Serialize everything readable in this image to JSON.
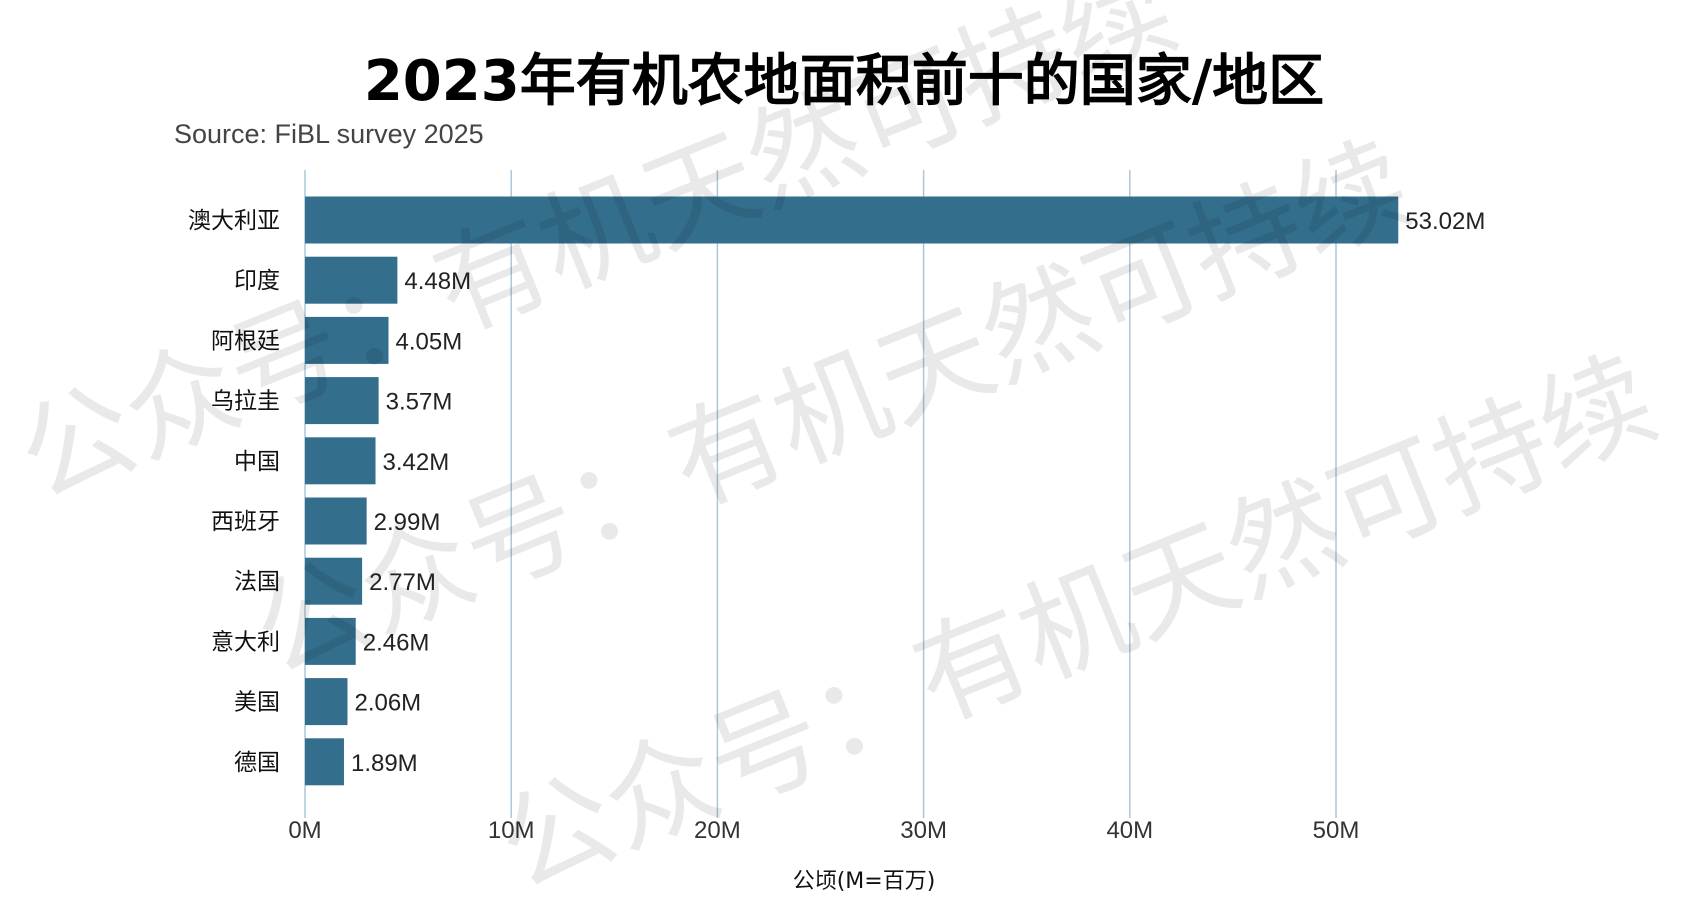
{
  "chart_data": {
    "type": "bar",
    "orientation": "horizontal",
    "title": "2023年有机农地面积前十的国家/地区",
    "subtitle": "Source: FiBL survey 2025",
    "xlabel": "公顷(M=百万)",
    "ylabel": "",
    "categories": [
      "澳大利亚",
      "印度",
      "阿根廷",
      "乌拉圭",
      "中国",
      "西班牙",
      "法国",
      "意大利",
      "美国",
      "德国"
    ],
    "values": [
      53.02,
      4.48,
      4.05,
      3.57,
      3.42,
      2.99,
      2.77,
      2.46,
      2.06,
      1.89
    ],
    "value_labels": [
      "53.02M",
      "4.48M",
      "4.05M",
      "3.57M",
      "3.42M",
      "2.99M",
      "2.77M",
      "2.46M",
      "2.06M",
      "1.89M"
    ],
    "ticks": [
      0,
      10,
      20,
      30,
      40,
      50
    ],
    "tick_labels": [
      "0M",
      "10M",
      "20M",
      "30M",
      "40M",
      "50M"
    ],
    "xlim": [
      0,
      56
    ],
    "grid": "vertical",
    "bar_color": "#346e8d",
    "grid_color": "#a9c8dc",
    "legend": "none"
  },
  "watermark": {
    "text": "公众号：有机天然可持续"
  }
}
